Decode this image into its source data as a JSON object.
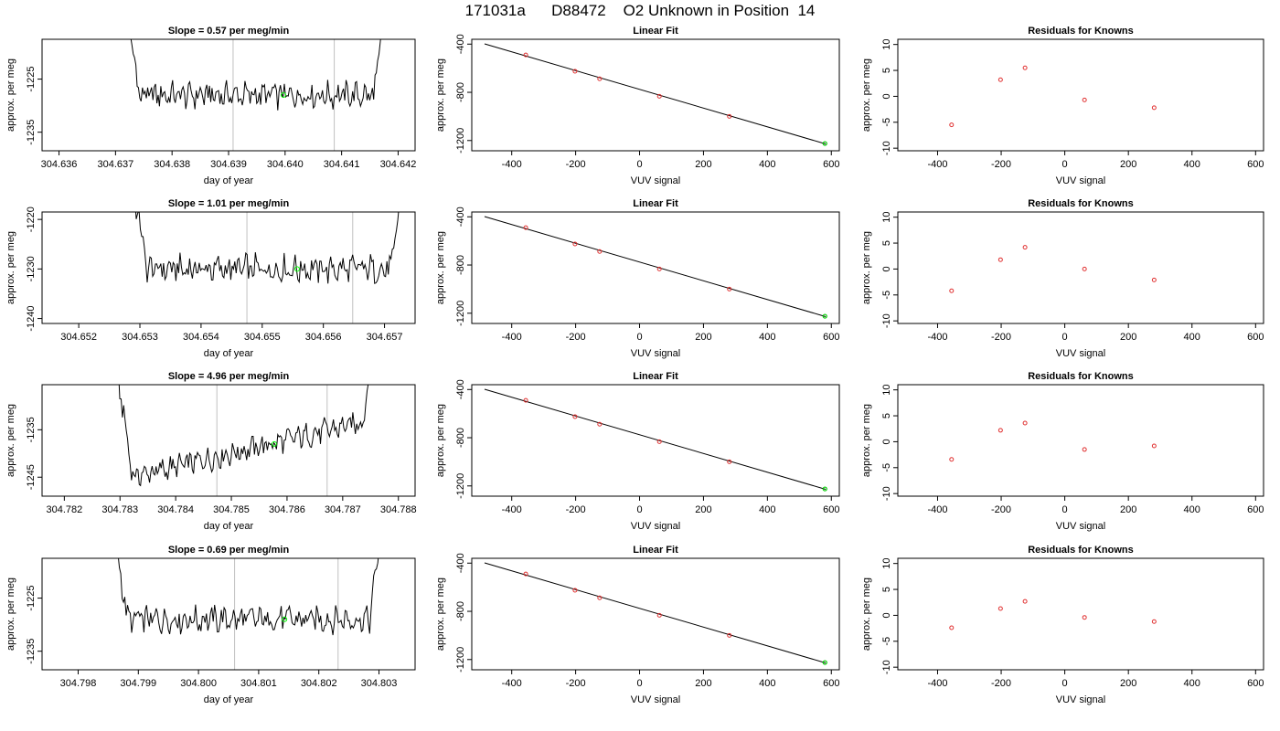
{
  "title": "171031a      D88472    O2 Unknown in Position  14",
  "chart_data": [
    {
      "type": "line",
      "title": "Slope =  0.57  per meg/min",
      "xlabel": "day of year",
      "ylabel": "approx. per meg",
      "xlim": [
        304.6357,
        304.6423
      ],
      "ylim": [
        -1238.5,
        -1217.5
      ],
      "xticks": [
        "304.636",
        "304.637",
        "304.638",
        "304.639",
        "304.640",
        "304.641",
        "304.642"
      ],
      "yticks": [
        "-1225",
        "-1235"
      ],
      "x_start": 304.63715,
      "x_end": 304.6418,
      "baseline": -1228.0,
      "amplitude": 2.6,
      "trend": 0.0,
      "vlines": [
        304.63908,
        304.64087
      ],
      "unknown_point": {
        "x": 304.63997,
        "y": -1228.0
      },
      "colors": {
        "line": "#000000",
        "vline": "#c0c0c0",
        "point": "#00ff00"
      }
    },
    {
      "type": "line",
      "title": "Slope =  1.01  per meg/min",
      "xlabel": "day of year",
      "ylabel": "approx. per meg",
      "xlim": [
        304.6514,
        304.6575
      ],
      "ylim": [
        -1241.0,
        -1218.5
      ],
      "xticks": [
        "304.652",
        "304.653",
        "304.654",
        "304.655",
        "304.656",
        "304.657"
      ],
      "yticks": [
        "-1220",
        "-1230",
        "-1240"
      ],
      "x_start": 304.65285,
      "x_end": 304.65733,
      "baseline": -1230.0,
      "amplitude": 3.0,
      "trend": 0.0,
      "vlines": [
        304.65475,
        304.65648
      ],
      "unknown_point": {
        "x": 304.65557,
        "y": -1230.0
      },
      "colors": {
        "line": "#000000",
        "vline": "#c0c0c0",
        "point": "#00ff00"
      }
    },
    {
      "type": "line",
      "title": "Slope =  4.96  per meg/min",
      "xlabel": "day of year",
      "ylabel": "approx. per meg",
      "xlim": [
        304.7816,
        304.7883
      ],
      "ylim": [
        -1249.0,
        -1225.5
      ],
      "xticks": [
        "304.782",
        "304.783",
        "304.784",
        "304.785",
        "304.786",
        "304.787",
        "304.788"
      ],
      "yticks": [
        "-1235",
        "-1245"
      ],
      "x_start": 304.78295,
      "x_end": 304.7876,
      "baseline": -1240.5,
      "amplitude": 2.6,
      "trend": 13.0,
      "vlines": [
        304.78474,
        304.78672
      ],
      "unknown_point": {
        "x": 304.78577,
        "y": -1238.0
      },
      "colors": {
        "line": "#000000",
        "vline": "#c0c0c0",
        "point": "#00ff00"
      }
    },
    {
      "type": "line",
      "title": "Slope =  0.69  per meg/min",
      "xlabel": "day of year",
      "ylabel": "approx. per meg",
      "xlim": [
        304.7974,
        304.8036
      ],
      "ylim": [
        -1238.5,
        -1217.5
      ],
      "xticks": [
        "304.798",
        "304.799",
        "304.800",
        "304.801",
        "304.802",
        "304.803"
      ],
      "yticks": [
        "-1225",
        "-1235"
      ],
      "x_start": 304.79855,
      "x_end": 304.80307,
      "baseline": -1229.0,
      "amplitude": 2.7,
      "trend": 0.0,
      "vlines": [
        304.8006,
        304.80232
      ],
      "unknown_point": {
        "x": 304.80143,
        "y": -1229.0
      },
      "colors": {
        "line": "#000000",
        "vline": "#c0c0c0",
        "point": "#00ff00"
      }
    },
    {
      "type": "scatter",
      "title": "Linear Fit",
      "xlabel": "VUV signal",
      "ylabel": "approx. per meg",
      "xlim": [
        -525,
        625
      ],
      "ylim": [
        -1285,
        -360
      ],
      "xticks": [
        "-400",
        "-200",
        "0",
        "200",
        "400",
        "600"
      ],
      "yticks": [
        "-400",
        "-800",
        "-1200"
      ],
      "points": [
        [
          -356,
          -490
        ],
        [
          -202,
          -625
        ],
        [
          -125,
          -688
        ],
        [
          62,
          -833
        ],
        [
          281,
          -1000
        ]
      ],
      "fit_line": [
        [
          -485,
          -398
        ],
        [
          582,
          -1228
        ]
      ],
      "unknown_point": {
        "x": 580,
        "y": -1225
      }
    },
    {
      "type": "scatter",
      "title": "Residuals for Knowns",
      "xlabel": "VUV signal",
      "ylabel": "approx. per meg",
      "xlim": [
        -525,
        625
      ],
      "ylim": [
        -10.5,
        11
      ],
      "xticks": [
        "-400",
        "-200",
        "0",
        "200",
        "400",
        "600"
      ],
      "yticks": [
        "-10",
        "-5",
        "0",
        "5",
        "10"
      ],
      "points": [
        [
          -356,
          -5.5
        ],
        [
          -202,
          3.2
        ],
        [
          -125,
          5.5
        ],
        [
          62,
          -0.7
        ],
        [
          281,
          -2.2
        ]
      ]
    },
    {
      "type": "scatter",
      "title": "Linear Fit",
      "xlabel": "VUV signal",
      "ylabel": "approx. per meg",
      "xlim": [
        -525,
        625
      ],
      "ylim": [
        -1285,
        -360
      ],
      "xticks": [
        "-400",
        "-200",
        "0",
        "200",
        "400",
        "600"
      ],
      "yticks": [
        "-400",
        "-800",
        "-1200"
      ],
      "points": [
        [
          -356,
          -490
        ],
        [
          -202,
          -625
        ],
        [
          -125,
          -688
        ],
        [
          62,
          -833
        ],
        [
          281,
          -1000
        ]
      ],
      "fit_line": [
        [
          -485,
          -398
        ],
        [
          582,
          -1228
        ]
      ],
      "unknown_point": {
        "x": 580,
        "y": -1225
      }
    },
    {
      "type": "scatter",
      "title": "Residuals for Knowns",
      "xlabel": "VUV signal",
      "ylabel": "approx. per meg",
      "xlim": [
        -525,
        625
      ],
      "ylim": [
        -10.5,
        11
      ],
      "xticks": [
        "-400",
        "-200",
        "0",
        "200",
        "400",
        "600"
      ],
      "yticks": [
        "-10",
        "-5",
        "0",
        "5",
        "10"
      ],
      "points": [
        [
          -356,
          -4.2
        ],
        [
          -202,
          1.8
        ],
        [
          -125,
          4.2
        ],
        [
          62,
          0.0
        ],
        [
          281,
          -2.1
        ]
      ]
    },
    {
      "type": "scatter",
      "title": "Linear Fit",
      "xlabel": "VUV signal",
      "ylabel": "approx. per meg",
      "xlim": [
        -525,
        625
      ],
      "ylim": [
        -1285,
        -360
      ],
      "xticks": [
        "-400",
        "-200",
        "0",
        "200",
        "400",
        "600"
      ],
      "yticks": [
        "-400",
        "-800",
        "-1200"
      ],
      "points": [
        [
          -356,
          -490
        ],
        [
          -202,
          -625
        ],
        [
          -125,
          -688
        ],
        [
          62,
          -833
        ],
        [
          281,
          -1000
        ]
      ],
      "fit_line": [
        [
          -485,
          -398
        ],
        [
          582,
          -1228
        ]
      ],
      "unknown_point": {
        "x": 580,
        "y": -1225
      }
    },
    {
      "type": "scatter",
      "title": "Residuals for Knowns",
      "xlabel": "VUV signal",
      "ylabel": "approx. per meg",
      "xlim": [
        -525,
        625
      ],
      "ylim": [
        -10.5,
        11
      ],
      "xticks": [
        "-400",
        "-200",
        "0",
        "200",
        "400",
        "600"
      ],
      "yticks": [
        "-10",
        "-5",
        "0",
        "5",
        "10"
      ],
      "points": [
        [
          -356,
          -3.4
        ],
        [
          -202,
          2.2
        ],
        [
          -125,
          3.6
        ],
        [
          62,
          -1.5
        ],
        [
          281,
          -0.8
        ]
      ]
    },
    {
      "type": "scatter",
      "title": "Linear Fit",
      "xlabel": "VUV signal",
      "ylabel": "approx. per meg",
      "xlim": [
        -525,
        625
      ],
      "ylim": [
        -1285,
        -360
      ],
      "xticks": [
        "-400",
        "-200",
        "0",
        "200",
        "400",
        "600"
      ],
      "yticks": [
        "-400",
        "-800",
        "-1200"
      ],
      "points": [
        [
          -356,
          -490
        ],
        [
          -202,
          -625
        ],
        [
          -125,
          -688
        ],
        [
          62,
          -833
        ],
        [
          281,
          -1000
        ]
      ],
      "fit_line": [
        [
          -485,
          -398
        ],
        [
          582,
          -1228
        ]
      ],
      "unknown_point": {
        "x": 580,
        "y": -1225
      }
    },
    {
      "type": "scatter",
      "title": "Residuals for Knowns",
      "xlabel": "VUV signal",
      "ylabel": "approx. per meg",
      "xlim": [
        -525,
        625
      ],
      "ylim": [
        -10.5,
        11
      ],
      "xticks": [
        "-400",
        "-200",
        "0",
        "200",
        "400",
        "600"
      ],
      "yticks": [
        "-10",
        "-5",
        "0",
        "5",
        "10"
      ],
      "points": [
        [
          -356,
          -2.4
        ],
        [
          -202,
          1.3
        ],
        [
          -125,
          2.7
        ],
        [
          62,
          -0.4
        ],
        [
          281,
          -1.2
        ]
      ]
    }
  ]
}
